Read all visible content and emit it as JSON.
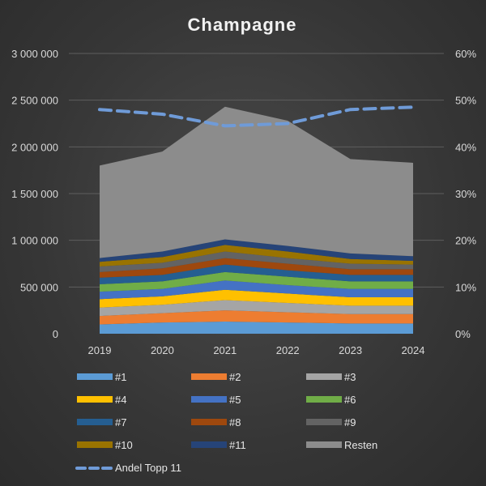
{
  "chart_data": {
    "type": "area",
    "title": "Champagne",
    "categories": [
      "2019",
      "2020",
      "2021",
      "2022",
      "2023",
      "2024"
    ],
    "ylim": [
      0,
      3000000
    ],
    "yticks": [
      "0",
      "500 000",
      "1 000 000",
      "1 500 000",
      "2 000 000",
      "2 500 000",
      "3 000 000"
    ],
    "y2lim": [
      0,
      0.6
    ],
    "y2ticks": [
      "0%",
      "10%",
      "20%",
      "30%",
      "40%",
      "50%",
      "60%"
    ],
    "stacked": true,
    "grid": true,
    "legend_position": "bottom",
    "series": [
      {
        "name": "#1",
        "color": "#5b9bd5",
        "values": [
          100000,
          120000,
          130000,
          120000,
          110000,
          110000
        ]
      },
      {
        "name": "#2",
        "color": "#ed7d31",
        "values": [
          90000,
          100000,
          120000,
          110000,
          100000,
          100000
        ]
      },
      {
        "name": "#3",
        "color": "#a5a5a5",
        "values": [
          90000,
          90000,
          110000,
          100000,
          90000,
          90000
        ]
      },
      {
        "name": "#4",
        "color": "#ffc000",
        "values": [
          90000,
          90000,
          110000,
          100000,
          90000,
          90000
        ]
      },
      {
        "name": "#5",
        "color": "#4472c4",
        "values": [
          80000,
          80000,
          100000,
          90000,
          90000,
          90000
        ]
      },
      {
        "name": "#6",
        "color": "#70ad47",
        "values": [
          80000,
          80000,
          90000,
          90000,
          80000,
          80000
        ]
      },
      {
        "name": "#7",
        "color": "#255e91",
        "values": [
          70000,
          70000,
          80000,
          70000,
          70000,
          70000
        ]
      },
      {
        "name": "#8",
        "color": "#9e480e",
        "values": [
          60000,
          70000,
          70000,
          70000,
          60000,
          60000
        ]
      },
      {
        "name": "#9",
        "color": "#636363",
        "values": [
          60000,
          60000,
          70000,
          60000,
          60000,
          50000
        ]
      },
      {
        "name": "#10",
        "color": "#997300",
        "values": [
          50000,
          60000,
          70000,
          70000,
          50000,
          40000
        ]
      },
      {
        "name": "#11",
        "color": "#264478",
        "values": [
          40000,
          60000,
          60000,
          60000,
          60000,
          50000
        ]
      },
      {
        "name": "Resten",
        "color": "#8c8c8c",
        "values": [
          990000,
          1070000,
          1420000,
          1340000,
          1010000,
          1000000
        ]
      }
    ],
    "line_series": {
      "name": "Andel Topp 11",
      "color": "#6f9bd8",
      "axis": "right",
      "values": [
        0.48,
        0.47,
        0.445,
        0.45,
        0.48,
        0.485
      ]
    }
  }
}
